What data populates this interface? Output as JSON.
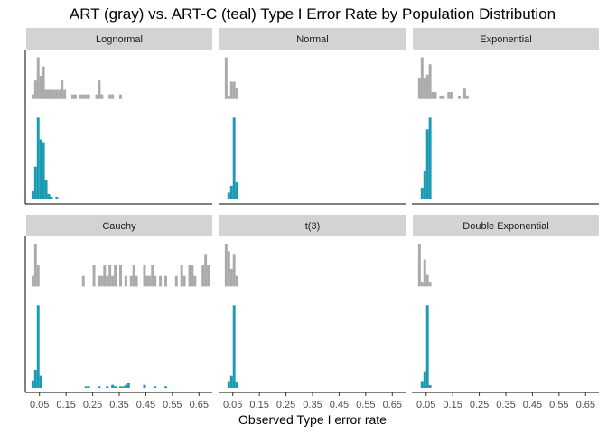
{
  "chart_data": {
    "type": "histogram",
    "title": "ART (gray) vs. ART-C (teal) Type I Error Rate by Population Distribution",
    "xlabel": "Observed Type I error rate",
    "ylabel": "",
    "xlim": [
      0.0,
      0.7
    ],
    "x_ticks": [
      0.05,
      0.15,
      0.25,
      0.35,
      0.45,
      0.55,
      0.65
    ],
    "x_tick_labels": [
      "0.05",
      "0.15",
      "0.25",
      "0.35",
      "0.45",
      "0.55",
      "0.65"
    ],
    "bin_width": 0.01,
    "grid": false,
    "layout": "2 rows x 3 columns",
    "series_colors": {
      "ART": "#aaaaaa",
      "ART-C": "#1b9bb3"
    },
    "strip_color": "#d3d3d3",
    "panels": [
      {
        "label": "Lognormal",
        "ART": [
          [
            0.025,
            1
          ],
          [
            0.035,
            4
          ],
          [
            0.045,
            9
          ],
          [
            0.055,
            5
          ],
          [
            0.065,
            7
          ],
          [
            0.075,
            2
          ],
          [
            0.085,
            2
          ],
          [
            0.095,
            2
          ],
          [
            0.105,
            2
          ],
          [
            0.115,
            2
          ],
          [
            0.125,
            2
          ],
          [
            0.135,
            4
          ],
          [
            0.145,
            2
          ],
          [
            0.175,
            1
          ],
          [
            0.185,
            1
          ],
          [
            0.205,
            1
          ],
          [
            0.215,
            1
          ],
          [
            0.225,
            1
          ],
          [
            0.235,
            1
          ],
          [
            0.265,
            1
          ],
          [
            0.275,
            4
          ],
          [
            0.285,
            1
          ],
          [
            0.315,
            1
          ],
          [
            0.325,
            1
          ],
          [
            0.355,
            1
          ]
        ],
        "ART-C": [
          [
            0.025,
            3
          ],
          [
            0.035,
            12
          ],
          [
            0.045,
            30
          ],
          [
            0.055,
            22
          ],
          [
            0.065,
            21
          ],
          [
            0.075,
            7
          ],
          [
            0.085,
            2
          ],
          [
            0.095,
            1
          ],
          [
            0.115,
            1
          ]
        ]
      },
      {
        "label": "Normal",
        "ART": [
          [
            0.025,
            12
          ],
          [
            0.035,
            1
          ],
          [
            0.045,
            5
          ],
          [
            0.055,
            5
          ],
          [
            0.065,
            3
          ]
        ],
        "ART-C": [
          [
            0.035,
            4
          ],
          [
            0.045,
            8
          ],
          [
            0.055,
            48
          ],
          [
            0.065,
            10
          ]
        ]
      },
      {
        "label": "Exponential",
        "ART": [
          [
            0.025,
            6
          ],
          [
            0.035,
            12
          ],
          [
            0.045,
            6
          ],
          [
            0.055,
            7
          ],
          [
            0.065,
            10
          ],
          [
            0.075,
            2
          ],
          [
            0.085,
            2
          ],
          [
            0.105,
            1
          ],
          [
            0.115,
            1
          ],
          [
            0.135,
            2
          ],
          [
            0.145,
            2
          ],
          [
            0.175,
            1
          ],
          [
            0.195,
            3
          ],
          [
            0.205,
            1
          ]
        ],
        "ART-C": [
          [
            0.035,
            5
          ],
          [
            0.045,
            12
          ],
          [
            0.055,
            30
          ],
          [
            0.065,
            35
          ]
        ]
      },
      {
        "label": "Cauchy",
        "ART": [
          [
            0.025,
            1
          ],
          [
            0.035,
            4
          ],
          [
            0.045,
            2
          ],
          [
            0.215,
            1
          ],
          [
            0.255,
            2
          ],
          [
            0.275,
            1
          ],
          [
            0.285,
            1
          ],
          [
            0.295,
            2
          ],
          [
            0.305,
            1
          ],
          [
            0.315,
            2
          ],
          [
            0.325,
            1
          ],
          [
            0.335,
            2
          ],
          [
            0.355,
            2
          ],
          [
            0.375,
            1
          ],
          [
            0.395,
            1
          ],
          [
            0.405,
            2
          ],
          [
            0.415,
            1
          ],
          [
            0.445,
            2
          ],
          [
            0.455,
            1
          ],
          [
            0.465,
            1
          ],
          [
            0.475,
            2
          ],
          [
            0.485,
            1
          ],
          [
            0.505,
            1
          ],
          [
            0.525,
            1
          ],
          [
            0.565,
            1
          ],
          [
            0.585,
            2
          ],
          [
            0.595,
            1
          ],
          [
            0.615,
            2
          ],
          [
            0.625,
            2
          ],
          [
            0.635,
            1
          ],
          [
            0.665,
            2
          ],
          [
            0.675,
            3
          ],
          [
            0.685,
            2
          ]
        ],
        "ART-C": [
          [
            0.025,
            5
          ],
          [
            0.035,
            12
          ],
          [
            0.045,
            55
          ],
          [
            0.055,
            8
          ],
          [
            0.225,
            1
          ],
          [
            0.235,
            1
          ],
          [
            0.275,
            1
          ],
          [
            0.305,
            1
          ],
          [
            0.325,
            2
          ],
          [
            0.335,
            1
          ],
          [
            0.355,
            1
          ],
          [
            0.365,
            1
          ],
          [
            0.375,
            2
          ],
          [
            0.385,
            3
          ],
          [
            0.445,
            2
          ],
          [
            0.485,
            1
          ],
          [
            0.525,
            1
          ]
        ]
      },
      {
        "label": "t(3)",
        "ART": [
          [
            0.025,
            12
          ],
          [
            0.035,
            10
          ],
          [
            0.045,
            5
          ],
          [
            0.055,
            9
          ],
          [
            0.065,
            3
          ]
        ],
        "ART-C": [
          [
            0.035,
            5
          ],
          [
            0.045,
            9
          ],
          [
            0.055,
            62
          ],
          [
            0.065,
            4
          ]
        ]
      },
      {
        "label": "Double Exponential",
        "ART": [
          [
            0.025,
            11
          ],
          [
            0.035,
            1
          ],
          [
            0.045,
            7
          ],
          [
            0.055,
            3
          ],
          [
            0.065,
            1
          ]
        ],
        "ART-C": [
          [
            0.035,
            5
          ],
          [
            0.045,
            12
          ],
          [
            0.055,
            60
          ],
          [
            0.065,
            2
          ]
        ]
      }
    ]
  }
}
